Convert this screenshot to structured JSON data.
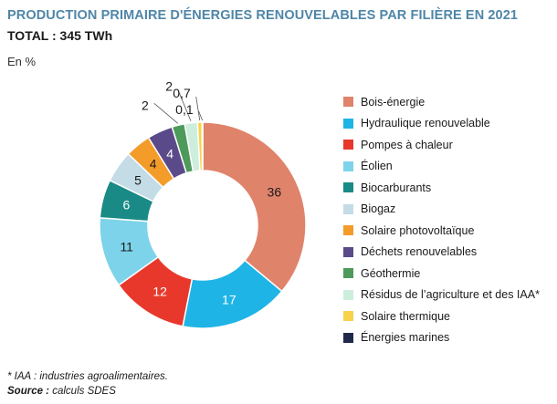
{
  "chart_data": {
    "type": "pie",
    "title": "PRODUCTION PRIMAIRE D'ÉNERGIES RENOUVELABLES PAR FILIÈRE EN 2021",
    "subtitle": "TOTAL : 345 TWh",
    "unit": "En %",
    "legend_position": "right",
    "slices": [
      {
        "name": "Bois-énergie",
        "value": 36,
        "label": "36",
        "color": "#e0836b",
        "text_color": "#1a1a1a"
      },
      {
        "name": "Hydraulique renouvelable",
        "value": 17,
        "label": "17",
        "color": "#1fb4e6",
        "text_color": "#ffffff"
      },
      {
        "name": "Pompes à chaleur",
        "value": 12,
        "label": "12",
        "color": "#e8382c",
        "text_color": "#ffffff"
      },
      {
        "name": "Éolien",
        "value": 11,
        "label": "11",
        "color": "#7dd3ea",
        "text_color": "#1a1a1a"
      },
      {
        "name": "Biocarburants",
        "value": 6,
        "label": "6",
        "color": "#1a8a86",
        "text_color": "#ffffff"
      },
      {
        "name": "Biogaz",
        "value": 5,
        "label": "5",
        "color": "#c3dce6",
        "text_color": "#1a1a1a"
      },
      {
        "name": "Solaire photovoltaïque",
        "value": 4,
        "label": "4",
        "color": "#f39c2a",
        "text_color": "#1a1a1a"
      },
      {
        "name": "Déchets renouvelables",
        "value": 4,
        "label": "4",
        "color": "#5b4a8a",
        "text_color": "#ffffff"
      },
      {
        "name": "Géothermie",
        "value": 2,
        "label": "2",
        "color": "#4d9a5a",
        "text_color": "#1a1a1a"
      },
      {
        "name": "Résidus de l’agriculture et des IAA*",
        "value": 2,
        "label": "2",
        "color": "#cdeedd",
        "text_color": "#1a1a1a"
      },
      {
        "name": "Solaire thermique",
        "value": 0.7,
        "label": "0,7",
        "color": "#f7d24a",
        "text_color": "#1a1a1a"
      },
      {
        "name": "Énergies marines",
        "value": 0.1,
        "label": "0,1",
        "color": "#1f2a4a",
        "text_color": "#1a1a1a"
      }
    ]
  },
  "footnote": "* IAA : industries agroalimentaires.",
  "source_label": "Source :",
  "source_value": "calculs SDES"
}
